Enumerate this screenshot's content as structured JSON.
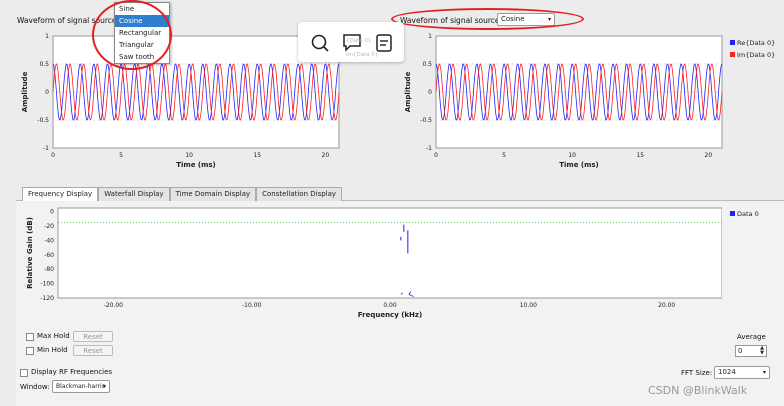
{
  "source1": {
    "label": "Waveform of signal source 1:",
    "options": [
      "Sine",
      "Cosine",
      "Rectangular",
      "Triangular",
      "Saw tooth"
    ],
    "selected": "Cosine"
  },
  "source2": {
    "label": "Waveform of signal source 2:",
    "value": "Cosine"
  },
  "time_plot": {
    "ylabel": "Amplitude",
    "xlabel": "Time (ms)",
    "yticks": [
      "1",
      "0.5",
      "0",
      "-0.5",
      "-1"
    ],
    "xticks": [
      "0",
      "5",
      "10",
      "15",
      "20"
    ]
  },
  "legend": {
    "re": "Re{Data 0}",
    "im": "Im{Data 0}",
    "re_short": "{Data 0}",
    "im_short": "Im{Data 0}"
  },
  "tabs": [
    "Frequency Display",
    "Waterfall Display",
    "Time Domain Display",
    "Constellation Display"
  ],
  "freq_plot": {
    "ylabel": "Relative Gain (dB)",
    "xlabel": "Frequency (kHz)",
    "yticks": [
      "0",
      "-20",
      "-40",
      "-60",
      "-80",
      "-100",
      "-120"
    ],
    "xticks": [
      "-20.00",
      "-10.00",
      "0.00",
      "10.00",
      "20.00"
    ],
    "legend": "Data 0"
  },
  "controls": {
    "max_hold": "Max Hold",
    "min_hold": "Min Hold",
    "reset": "Reset",
    "average": "Average",
    "average_value": "0",
    "display_rf": "Display RF Frequencies",
    "window_label": "Window:",
    "window_value": "Blackman-harris",
    "fft_label": "FFT Size:",
    "fft_value": "1024"
  },
  "watermark": "CSDN @BlinkWalk",
  "colors": {
    "re": "#2020ff",
    "im": "#ff2020",
    "accent": "#e02020",
    "threshold": "#3cb043"
  },
  "chart_data": [
    {
      "type": "line",
      "title": "",
      "xlabel": "Time (ms)",
      "ylabel": "Amplitude",
      "xlim": [
        0,
        21
      ],
      "ylim": [
        -1,
        1
      ],
      "series": [
        {
          "name": "Re{Data 0}",
          "amplitude": 0.5,
          "cycles_per_ms": 1
        },
        {
          "name": "Im{Data 0}",
          "amplitude": 0.5,
          "cycles_per_ms": 1
        }
      ]
    },
    {
      "type": "line",
      "title": "",
      "xlabel": "Time (ms)",
      "ylabel": "Amplitude",
      "xlim": [
        0,
        21
      ],
      "ylim": [
        -1,
        1
      ],
      "series": [
        {
          "name": "Re{Data 0}",
          "amplitude": 0.5,
          "cycles_per_ms": 1
        },
        {
          "name": "Im{Data 0}",
          "amplitude": 0.5,
          "cycles_per_ms": 1
        }
      ]
    },
    {
      "type": "line",
      "title": "",
      "xlabel": "Frequency (kHz)",
      "ylabel": "Relative Gain (dB)",
      "xlim": [
        -24,
        24
      ],
      "ylim": [
        -120,
        5
      ],
      "threshold": -15,
      "series": [
        {
          "name": "Data 0",
          "peak_khz": 1,
          "peak_db": -18
        }
      ]
    }
  ]
}
